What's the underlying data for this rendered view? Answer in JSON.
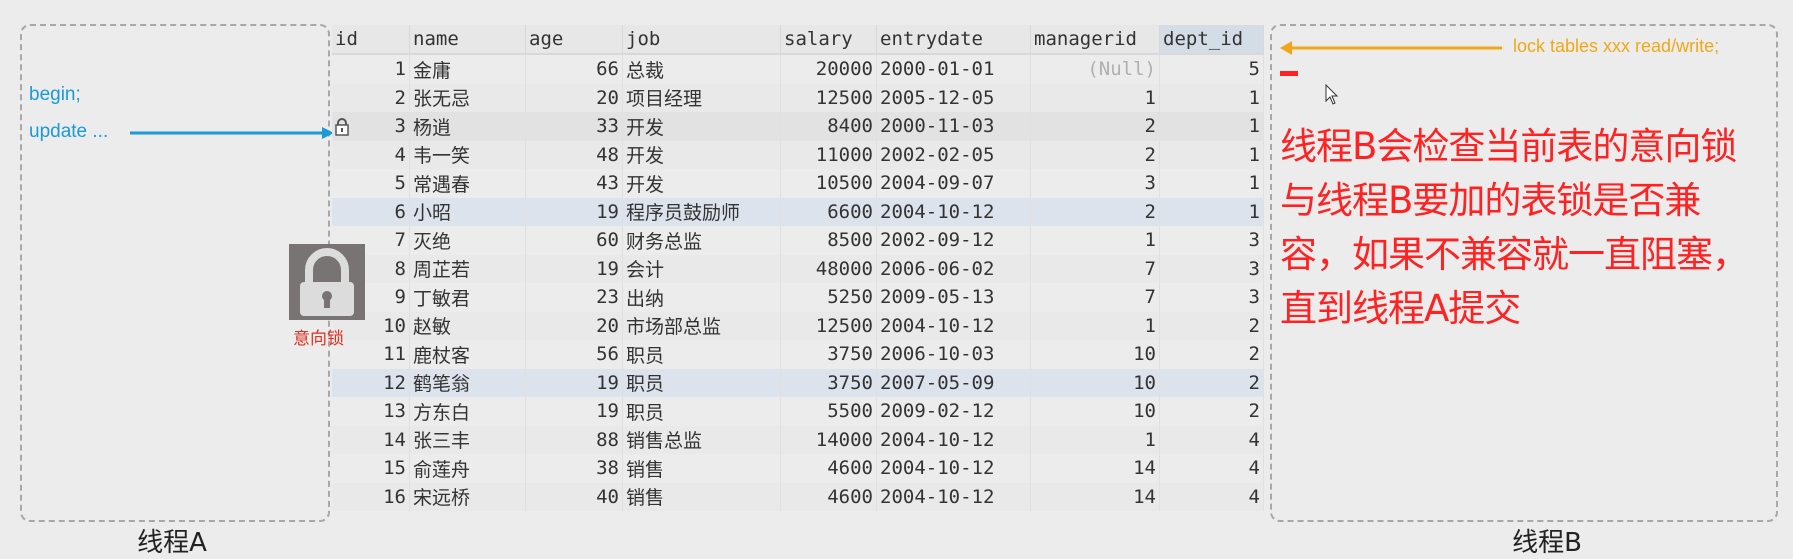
{
  "thread_a": {
    "label": "线程A",
    "lines": [
      "begin;",
      "update ..."
    ],
    "arrow_color": "#1a9ad6"
  },
  "thread_b": {
    "label": "线程B",
    "command": "lock tables xxx read/write;",
    "arrow_color": "#f0a818",
    "explanation": "线程B会检查当前表的意向锁与线程B要加的表锁是否兼容，如果不兼容就一直阻塞，直到线程A提交"
  },
  "intent_lock": {
    "label": "意向锁",
    "icon": "padlock-icon"
  },
  "table": {
    "columns": [
      "id",
      "name",
      "age",
      "job",
      "salary",
      "entrydate",
      "managerid",
      "dept_id"
    ],
    "rows": [
      [
        "1",
        "金庸",
        "66",
        "总裁",
        "20000",
        "2000-01-01",
        "(Null)",
        "5"
      ],
      [
        "2",
        "张无忌",
        "20",
        "项目经理",
        "12500",
        "2005-12-05",
        "1",
        "1"
      ],
      [
        "3",
        "杨逍",
        "33",
        "开发",
        "8400",
        "2000-11-03",
        "2",
        "1"
      ],
      [
        "4",
        "韦一笑",
        "48",
        "开发",
        "11000",
        "2002-02-05",
        "2",
        "1"
      ],
      [
        "5",
        "常遇春",
        "43",
        "开发",
        "10500",
        "2004-09-07",
        "3",
        "1"
      ],
      [
        "6",
        "小昭",
        "19",
        "程序员鼓励师",
        "6600",
        "2004-10-12",
        "2",
        "1"
      ],
      [
        "7",
        "灭绝",
        "60",
        "财务总监",
        "8500",
        "2002-09-12",
        "1",
        "3"
      ],
      [
        "8",
        "周芷若",
        "19",
        "会计",
        "48000",
        "2006-06-02",
        "7",
        "3"
      ],
      [
        "9",
        "丁敏君",
        "23",
        "出纳",
        "5250",
        "2009-05-13",
        "7",
        "3"
      ],
      [
        "10",
        "赵敏",
        "20",
        "市场部总监",
        "12500",
        "2004-10-12",
        "1",
        "2"
      ],
      [
        "11",
        "鹿杖客",
        "56",
        "职员",
        "3750",
        "2006-10-03",
        "10",
        "2"
      ],
      [
        "12",
        "鹤笔翁",
        "19",
        "职员",
        "3750",
        "2007-05-09",
        "10",
        "2"
      ],
      [
        "13",
        "方东白",
        "19",
        "职员",
        "5500",
        "2009-02-12",
        "10",
        "2"
      ],
      [
        "14",
        "张三丰",
        "88",
        "销售总监",
        "14000",
        "2004-10-12",
        "1",
        "4"
      ],
      [
        "15",
        "俞莲舟",
        "38",
        "销售",
        "4600",
        "2004-10-12",
        "14",
        "4"
      ],
      [
        "16",
        "宋远桥",
        "40",
        "销售",
        "4600",
        "2004-10-12",
        "14",
        "4"
      ]
    ],
    "locked_row_id": "3"
  }
}
